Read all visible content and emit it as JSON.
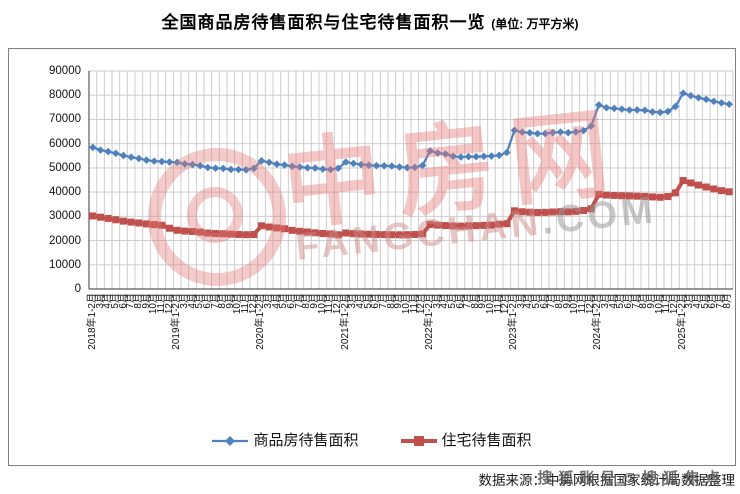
{
  "title": {
    "main": "全国商品房待售面积与住宅待售面积一览",
    "unit": "(单位: 万平方米)"
  },
  "chart_data": {
    "type": "line",
    "title": "全国商品房待售面积与住宅待售面积一览",
    "unit": "万平方米",
    "xlabel": "",
    "ylabel": "",
    "ylim": [
      0,
      90000
    ],
    "ytick_interval": 10000,
    "yticks": [
      0,
      10000,
      20000,
      30000,
      40000,
      50000,
      60000,
      70000,
      80000,
      90000
    ],
    "grid": "both",
    "legend_position": "bottom",
    "categories": [
      "2018年1-2月",
      "3月",
      "4月",
      "5月",
      "6月",
      "7月",
      "8月",
      "9月",
      "10月",
      "11月",
      "12月",
      "2019年1-2月",
      "3月",
      "4月",
      "5月",
      "6月",
      "7月",
      "8月",
      "9月",
      "10月",
      "11月",
      "12月",
      "2020年1-2月",
      "3月",
      "4月",
      "5月",
      "6月",
      "7月",
      "8月",
      "9月",
      "10月",
      "11月",
      "12月",
      "2021年1-2月",
      "3月",
      "4月",
      "5月",
      "6月",
      "7月",
      "8月",
      "9月",
      "10月",
      "11月",
      "12月",
      "2022年1-2月",
      "3月",
      "4月",
      "5月",
      "6月",
      "7月",
      "8月",
      "9月",
      "10月",
      "11月",
      "12月",
      "2023年1-2月",
      "3月",
      "4月",
      "5月",
      "6月",
      "7月",
      "8月",
      "9月",
      "10月",
      "11月",
      "12月",
      "2024年1-2月",
      "3月",
      "4月",
      "5月",
      "6月",
      "7月",
      "8月",
      "9月",
      "10月",
      "11月",
      "12月",
      "2025年1-2月",
      "3月",
      "4月",
      "5月",
      "6月",
      "7月",
      "8月"
    ],
    "series": [
      {
        "name": "商品房待售面积",
        "color": "#4F81BD",
        "marker": "diamond",
        "marker_size": 7.6,
        "line_width": 2.2,
        "values": [
          58468,
          57329,
          56726,
          56010,
          55083,
          54428,
          53873,
          53191,
          52789,
          52627,
          52414,
          52251,
          51646,
          51380,
          50928,
          50162,
          49876,
          49784,
          49346,
          49323,
          49221,
          49821,
          52930,
          52255,
          51512,
          51184,
          50662,
          50324,
          50052,
          49925,
          49492,
          49287,
          49850,
          52425,
          51835,
          51380,
          51087,
          50929,
          50864,
          50738,
          50385,
          50089,
          50205,
          51023,
          57026,
          56113,
          55734,
          54784,
          54469,
          54655,
          54605,
          54767,
          54894,
          55203,
          56366,
          65528,
          64770,
          64487,
          64120,
          64159,
          64564,
          64795,
          64537,
          64835,
          65385,
          67295,
          75969,
          74833,
          74553,
          74256,
          73894,
          73926,
          73783,
          73113,
          72909,
          73286,
          75327,
          80864,
          79793,
          78954,
          78286,
          77463,
          76838,
          76268
        ]
      },
      {
        "name": "住宅待售面积",
        "color": "#C0504D",
        "marker": "square",
        "marker_size": 7,
        "line_width": 4,
        "values": [
          30164,
          29650,
          29132,
          28580,
          28026,
          27610,
          27254,
          26869,
          26580,
          26320,
          25091,
          24236,
          23905,
          23745,
          23489,
          23093,
          22894,
          22788,
          22660,
          22521,
          22412,
          22473,
          26111,
          25602,
          25212,
          24881,
          24216,
          23833,
          23525,
          23196,
          22920,
          22704,
          22379,
          23110,
          22862,
          22716,
          22606,
          22526,
          22454,
          22406,
          22389,
          22416,
          22518,
          22761,
          26635,
          26366,
          26199,
          26016,
          25969,
          26077,
          26164,
          26261,
          26406,
          26741,
          26947,
          32271,
          31883,
          31703,
          31592,
          31639,
          31793,
          31912,
          31862,
          32052,
          32403,
          33119,
          39088,
          38797,
          38634,
          38511,
          38423,
          38318,
          38226,
          38012,
          37867,
          38176,
          39701,
          44760,
          43800,
          42900,
          42100,
          41300,
          40600,
          40135
        ]
      }
    ]
  },
  "watermark": {
    "logo": "中房网",
    "domain_main": "FANGCHAN",
    "domain_tld": ".COM"
  },
  "footer": {
    "source": "数据来源：中房网根据国家统计局数据整理",
    "overlay": "搜狐账号@搜狐焦点"
  }
}
